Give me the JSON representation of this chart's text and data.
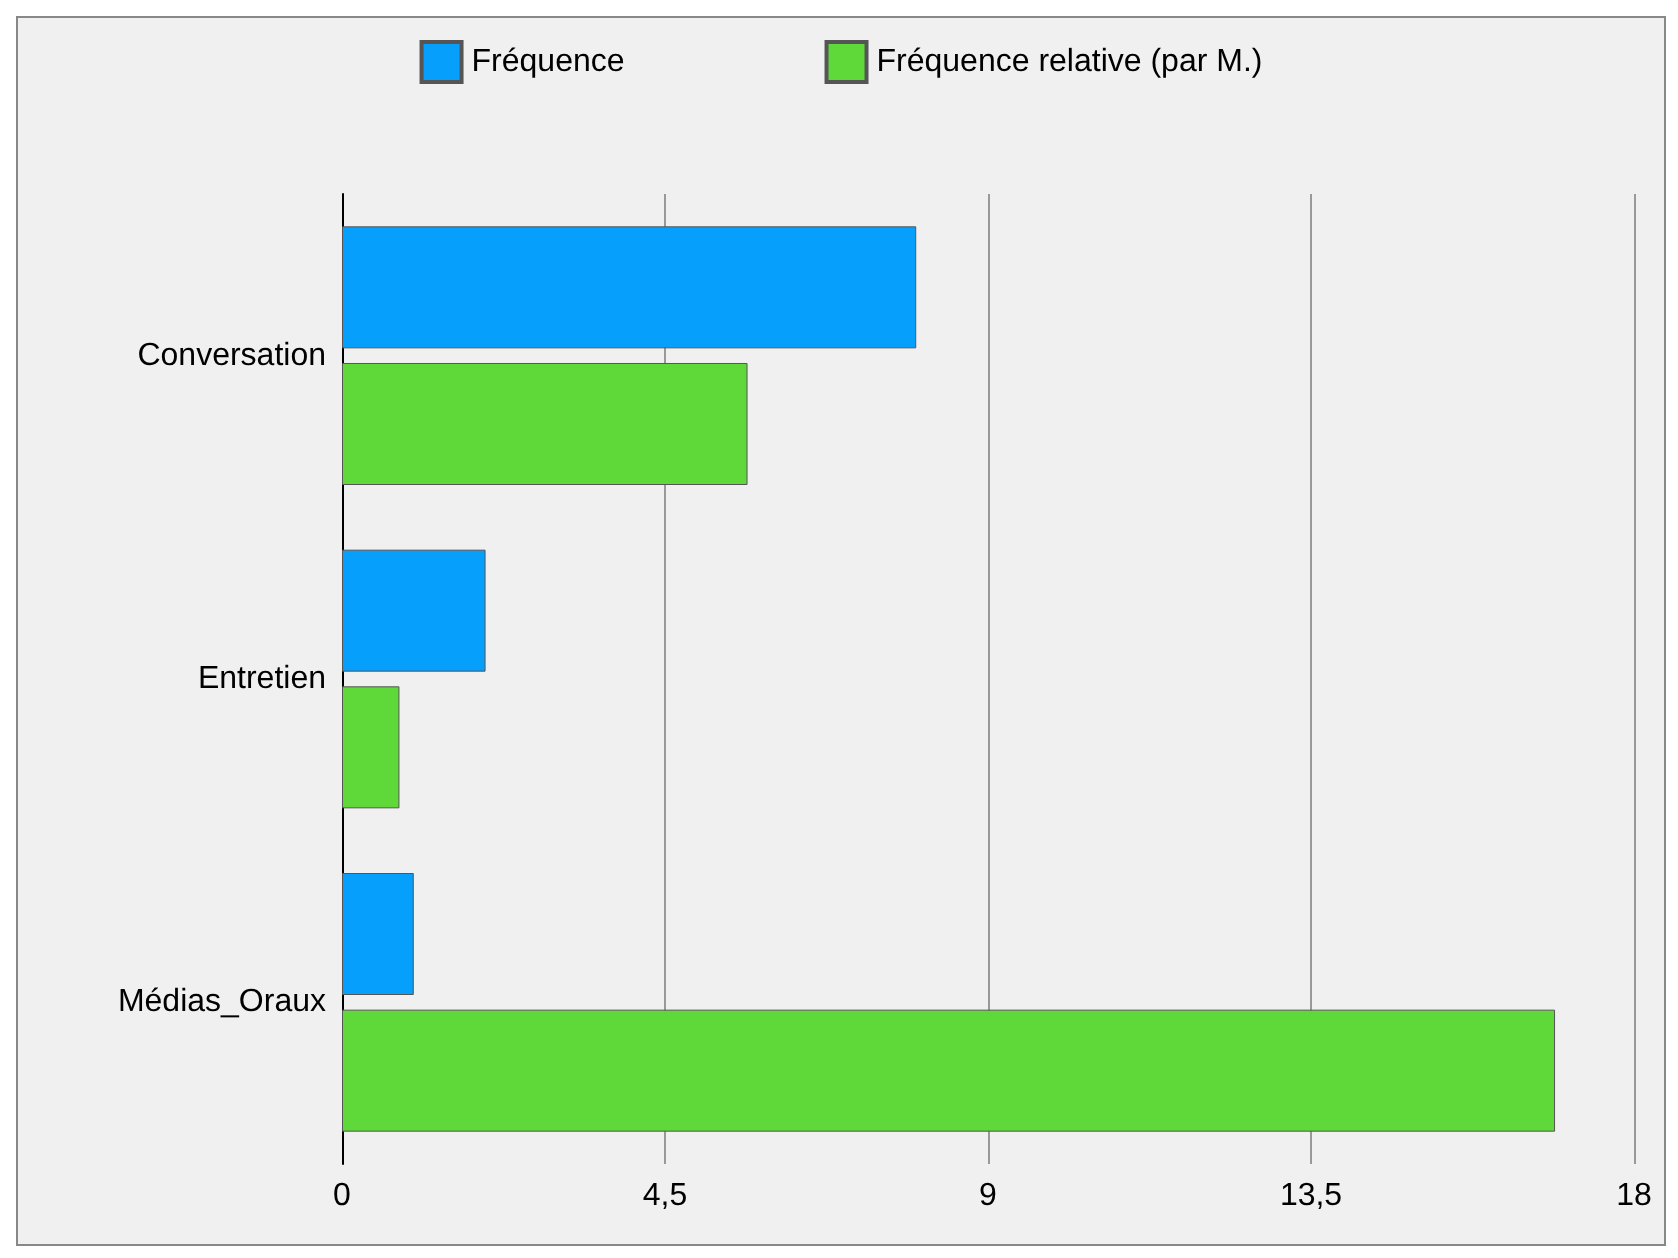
{
  "chart_data": {
    "type": "bar",
    "orientation": "horizontal",
    "categories": [
      "Conversation",
      "Entretien",
      "Médias_Oraux"
    ],
    "series": [
      {
        "name": "Fréquence",
        "color": "#069ffc",
        "values": [
          8,
          2,
          1
        ]
      },
      {
        "name": "Fréquence relative (par M.)",
        "color": "#5fd83a",
        "values": [
          5.65,
          0.8,
          16.9
        ]
      }
    ],
    "xlim": [
      0,
      18
    ],
    "xticks": [
      0,
      {
        "value": 4.5,
        "label": "4,5"
      },
      9,
      {
        "value": 13.5,
        "label": "13,5"
      },
      18
    ],
    "grid": "x",
    "legend": "top"
  }
}
